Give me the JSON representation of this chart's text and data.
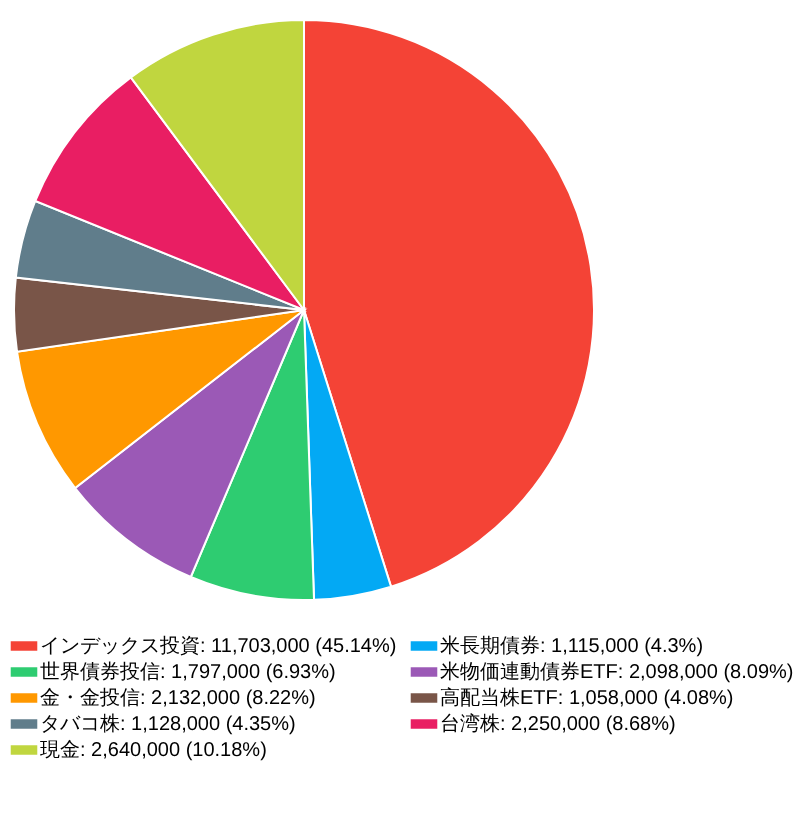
{
  "chart_data": {
    "type": "pie",
    "legend": "bottom",
    "categories": [
      "インデックス投資",
      "米長期債券",
      "世界債券投信",
      "米物価連動債券ETF",
      "金・金投信",
      "高配当株ETF",
      "タバコ株",
      "台湾株",
      "現金"
    ],
    "values": [
      11703000,
      1115000,
      1797000,
      2098000,
      2132000,
      1058000,
      1128000,
      2250000,
      2640000
    ],
    "value_labels": [
      "11,703,000 (45.14%)",
      "1,115,000 (4.3%)",
      "1,797,000 (6.93%)",
      "2,098,000 (8.09%)",
      "2,132,000 (8.22%)",
      "1,058,000 (4.08%)",
      "1,128,000 (4.35%)",
      "2,250,000 (8.68%)",
      "2,640,000 (10.18%)"
    ],
    "colors": [
      "#f44336",
      "#03a9f4",
      "#2ecc71",
      "#9b59b6",
      "#ff9800",
      "#795548",
      "#607d8b",
      "#e91e63",
      "#c0d63f"
    ]
  }
}
